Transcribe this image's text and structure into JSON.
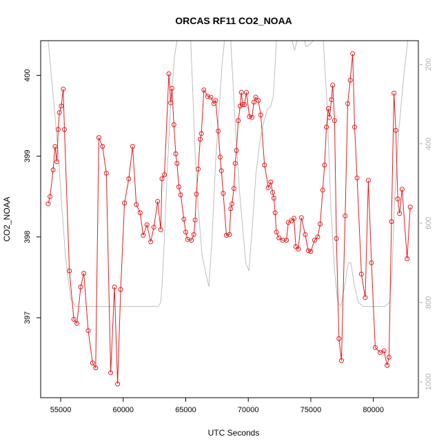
{
  "chart_data": {
    "type": "line",
    "title": "ORCAS RF11 CO2_NOAA",
    "xlabel": "UTC Seconds",
    "ylabel": "CO2_NOAA",
    "xlim": [
      53400,
      83600
    ],
    "ylim": [
      396.01,
      400.43
    ],
    "y2lim": [
      1040,
      140
    ],
    "x_ticks": [
      55000,
      60000,
      65000,
      70000,
      75000,
      80000
    ],
    "y_ticks": [
      397,
      398,
      399,
      400
    ],
    "y2_ticks": [
      200,
      400,
      600,
      800,
      1000
    ],
    "grid": false,
    "legend": "none",
    "colors": {
      "co2": "#e41a1c",
      "pressure": "#bdbdbd",
      "axes": "#000000",
      "right_axis": "#b0b0b0"
    },
    "series": [
      {
        "role": "co2",
        "points": [
          [
            54000,
            398.41
          ],
          [
            54150,
            398.5
          ],
          [
            54400,
            398.83
          ],
          [
            54550,
            399.12
          ],
          [
            54700,
            398.93
          ],
          [
            54800,
            399.33
          ],
          [
            54900,
            399.54
          ],
          [
            55050,
            399.62
          ],
          [
            55200,
            399.83
          ],
          [
            55300,
            399.33
          ],
          [
            55700,
            397.58
          ],
          [
            56050,
            396.98
          ],
          [
            56300,
            396.93
          ],
          [
            56600,
            397.38
          ],
          [
            56850,
            397.55
          ],
          [
            57200,
            396.84
          ],
          [
            57550,
            396.44
          ],
          [
            57800,
            396.38
          ],
          [
            58050,
            399.23
          ],
          [
            58350,
            399.12
          ],
          [
            58650,
            398.79
          ],
          [
            59000,
            396.32
          ],
          [
            59300,
            397.38
          ],
          [
            59550,
            396.18
          ],
          [
            59800,
            397.35
          ],
          [
            60100,
            398.42
          ],
          [
            60450,
            398.72
          ],
          [
            60750,
            399.12
          ],
          [
            61050,
            398.4
          ],
          [
            61350,
            398.3
          ],
          [
            61600,
            398.02
          ],
          [
            61900,
            398.15
          ],
          [
            62200,
            397.94
          ],
          [
            62450,
            398.12
          ],
          [
            62750,
            398.44
          ],
          [
            63000,
            398.09
          ],
          [
            63100,
            398.72
          ],
          [
            63300,
            398.77
          ],
          [
            63650,
            400.02
          ],
          [
            63800,
            399.66
          ],
          [
            63900,
            399.84
          ],
          [
            64050,
            399.39
          ],
          [
            64200,
            399.03
          ],
          [
            64300,
            398.91
          ],
          [
            64450,
            398.62
          ],
          [
            64600,
            398.52
          ],
          [
            64850,
            398.22
          ],
          [
            65000,
            398.06
          ],
          [
            65150,
            397.97
          ],
          [
            65450,
            397.96
          ],
          [
            65650,
            398.03
          ],
          [
            65750,
            398.21
          ],
          [
            65850,
            398.53
          ],
          [
            66000,
            398.84
          ],
          [
            66150,
            399.21
          ],
          [
            66250,
            399.28
          ],
          [
            66450,
            399.82
          ],
          [
            66750,
            399.74
          ],
          [
            67000,
            399.73
          ],
          [
            67250,
            399.65
          ],
          [
            67400,
            399.69
          ],
          [
            67600,
            399.31
          ],
          [
            67750,
            398.99
          ],
          [
            67850,
            398.82
          ],
          [
            68000,
            398.54
          ],
          [
            68250,
            398.02
          ],
          [
            68500,
            398.03
          ],
          [
            68600,
            398.35
          ],
          [
            68700,
            398.41
          ],
          [
            68850,
            398.6
          ],
          [
            68950,
            398.91
          ],
          [
            69050,
            399.07
          ],
          [
            69200,
            399.44
          ],
          [
            69350,
            399.62
          ],
          [
            69450,
            399.79
          ],
          [
            69550,
            399.64
          ],
          [
            69700,
            399.64
          ],
          [
            69850,
            399.79
          ],
          [
            70100,
            399.49
          ],
          [
            70300,
            399.48
          ],
          [
            70450,
            399.67
          ],
          [
            70600,
            399.73
          ],
          [
            70800,
            399.69
          ],
          [
            71000,
            399.51
          ],
          [
            71300,
            398.89
          ],
          [
            71600,
            398.61
          ],
          [
            71800,
            398.68
          ],
          [
            71950,
            398.55
          ],
          [
            72050,
            398.48
          ],
          [
            72150,
            398.3
          ],
          [
            72250,
            398.06
          ],
          [
            72450,
            397.99
          ],
          [
            72750,
            397.96
          ],
          [
            73050,
            397.96
          ],
          [
            73200,
            398.18
          ],
          [
            73450,
            398.2
          ],
          [
            73650,
            398.23
          ],
          [
            73800,
            397.88
          ],
          [
            74000,
            397.85
          ],
          [
            74250,
            398.24
          ],
          [
            74550,
            398.03
          ],
          [
            74800,
            397.83
          ],
          [
            75000,
            397.82
          ],
          [
            75300,
            397.96
          ],
          [
            75550,
            398.0
          ],
          [
            75750,
            398.16
          ],
          [
            75950,
            398.58
          ],
          [
            76100,
            398.89
          ],
          [
            76250,
            399.36
          ],
          [
            76400,
            399.59
          ],
          [
            76500,
            399.48
          ],
          [
            76650,
            399.7
          ],
          [
            76750,
            399.88
          ],
          [
            76900,
            399.44
          ],
          [
            77050,
            397.98
          ],
          [
            77250,
            396.74
          ],
          [
            77450,
            396.47
          ],
          [
            77750,
            398.26
          ],
          [
            77950,
            399.65
          ],
          [
            78150,
            399.94
          ],
          [
            78350,
            400.27
          ],
          [
            78500,
            399.36
          ],
          [
            78700,
            398.73
          ],
          [
            79050,
            397.54
          ],
          [
            79350,
            397.25
          ],
          [
            79600,
            398.7
          ],
          [
            79850,
            397.68
          ],
          [
            80150,
            396.63
          ],
          [
            80550,
            396.57
          ],
          [
            80850,
            396.59
          ],
          [
            81100,
            396.41
          ],
          [
            81250,
            396.51
          ],
          [
            81450,
            398.19
          ],
          [
            81650,
            399.78
          ],
          [
            81800,
            399.32
          ],
          [
            81950,
            398.47
          ],
          [
            82100,
            398.29
          ],
          [
            82300,
            398.59
          ],
          [
            82700,
            397.73
          ],
          [
            82950,
            398.37
          ]
        ]
      },
      {
        "role": "pressure",
        "y_axis": "right",
        "points": [
          [
            54000,
            140
          ],
          [
            54350,
            260
          ],
          [
            54800,
            420
          ],
          [
            55100,
            560
          ],
          [
            55400,
            690
          ],
          [
            55800,
            790
          ],
          [
            56200,
            810
          ],
          [
            57000,
            810
          ],
          [
            58000,
            810
          ],
          [
            59000,
            810
          ],
          [
            60000,
            810
          ],
          [
            61000,
            810
          ],
          [
            62000,
            810
          ],
          [
            62800,
            810
          ],
          [
            63000,
            800
          ],
          [
            63100,
            760
          ],
          [
            63300,
            640
          ],
          [
            63500,
            480
          ],
          [
            63800,
            300
          ],
          [
            64100,
            180
          ],
          [
            64300,
            140
          ],
          [
            65000,
            140
          ],
          [
            65400,
            140
          ],
          [
            65550,
            260
          ],
          [
            65750,
            420
          ],
          [
            66000,
            560
          ],
          [
            66300,
            680
          ],
          [
            66700,
            740
          ],
          [
            66850,
            760
          ],
          [
            67100,
            640
          ],
          [
            67400,
            440
          ],
          [
            67700,
            300
          ],
          [
            67900,
            200
          ],
          [
            68100,
            140
          ],
          [
            68600,
            140
          ],
          [
            68900,
            320
          ],
          [
            69300,
            520
          ],
          [
            69800,
            700
          ],
          [
            70050,
            720
          ],
          [
            70300,
            620
          ],
          [
            70600,
            480
          ],
          [
            70900,
            400
          ],
          [
            71200,
            350
          ],
          [
            71500,
            315
          ],
          [
            71800,
            305
          ],
          [
            72000,
            280
          ],
          [
            72150,
            200
          ],
          [
            72250,
            140
          ],
          [
            73500,
            140
          ],
          [
            73700,
            165
          ],
          [
            73900,
            140
          ],
          [
            74500,
            140
          ],
          [
            74600,
            155
          ],
          [
            74900,
            150
          ],
          [
            75200,
            140
          ],
          [
            76000,
            140
          ],
          [
            76300,
            300
          ],
          [
            76600,
            560
          ],
          [
            76900,
            720
          ],
          [
            77150,
            800
          ],
          [
            77400,
            810
          ],
          [
            77700,
            760
          ],
          [
            78000,
            700
          ],
          [
            78200,
            700
          ],
          [
            78500,
            760
          ],
          [
            78800,
            800
          ],
          [
            79200,
            810
          ],
          [
            80000,
            810
          ],
          [
            80900,
            810
          ],
          [
            81300,
            800
          ],
          [
            81500,
            720
          ],
          [
            81700,
            540
          ],
          [
            82000,
            380
          ],
          [
            82400,
            240
          ],
          [
            82750,
            140
          ],
          [
            83100,
            140
          ]
        ]
      }
    ]
  }
}
